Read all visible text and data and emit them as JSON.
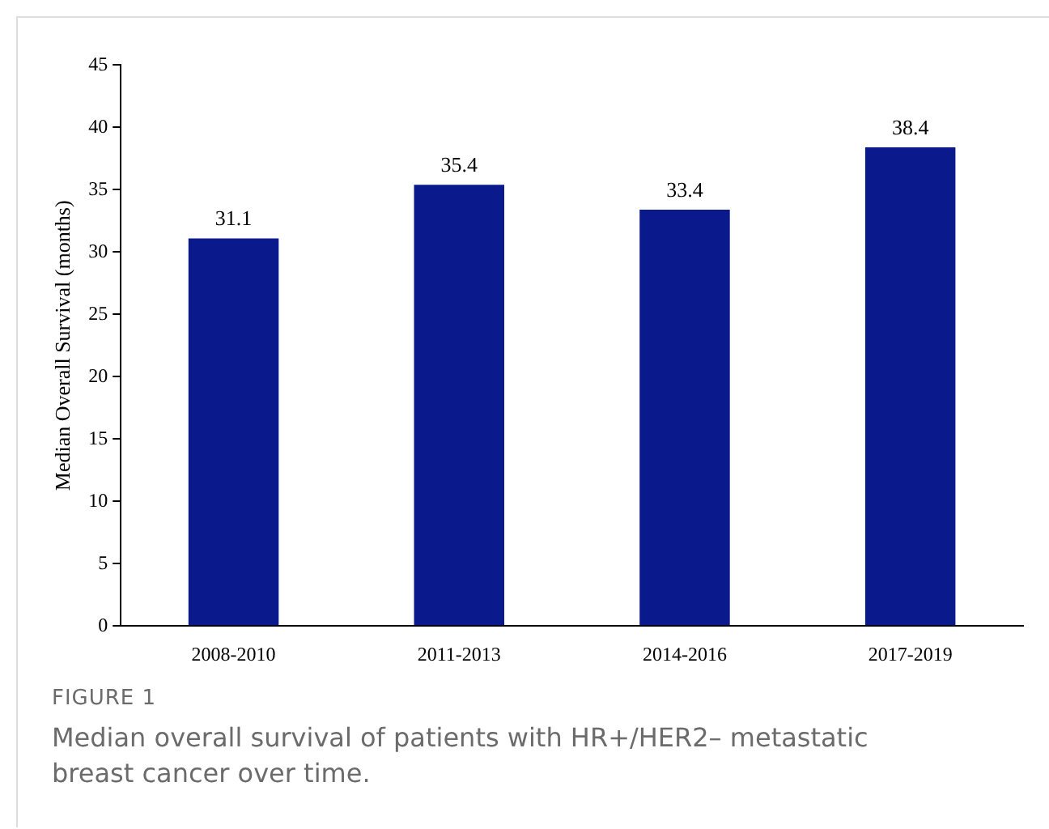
{
  "chart_data": {
    "type": "bar",
    "ylabel": "Median Overall Survival (months)",
    "categories": [
      "2008-2010",
      "2011-2013",
      "2014-2016",
      "2017-2019"
    ],
    "values": [
      31.1,
      35.4,
      33.4,
      38.4
    ],
    "color": "#0a1a8c",
    "ylim": [
      0,
      45
    ],
    "yticks": [
      0,
      5,
      10,
      15,
      20,
      25,
      30,
      35,
      40,
      45
    ],
    "grid": false,
    "data_labels": true,
    "annotations": [
      "FIGURE 1",
      "Median overall survival of patients with HR+/HER2– metastatic breast cancer over time."
    ]
  }
}
